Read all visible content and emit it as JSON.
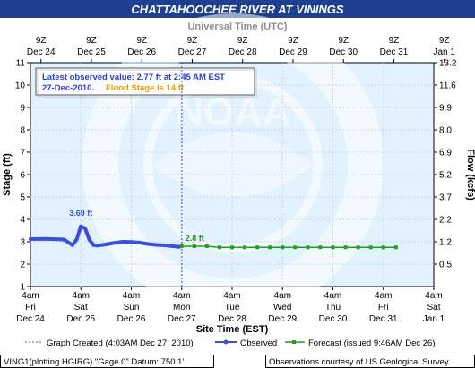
{
  "title": "CHATTAHOOCHEE RIVER AT VININGS",
  "top_axis_title": "Universal Time (UTC)",
  "bottom_axis_title": "Site Time (EST)",
  "left_axis_title": "Stage (ft)",
  "right_axis_title": "Flow (kcfs)",
  "watermark": "NOAA",
  "info": {
    "line1": "Latest observed value: 2.77 ft at 2:45 AM EST",
    "line2_date": "27-Dec-2010.",
    "line2_flood": "Flood Stage is 14 ft"
  },
  "legend": {
    "graph_created": "Graph Created (4:03AM Dec 27, 2010)",
    "observed": "Observed",
    "forecast": "Forecast (issued 9:46AM Dec 26)"
  },
  "footer": {
    "left": "VING1(plotting HGIRG) \"Gage 0\" Datum: 750.1'",
    "right": "Observations courtesy of US Geological Survey"
  },
  "colors": {
    "title_bg": "#1f3f8f",
    "plot_bg": "#e3f2ff",
    "observed": "#3a4fe0",
    "forecast": "#1fa11f",
    "flood_text": "#e8a000",
    "info_text": "#2a3fd6",
    "grid": "#c8d4e4",
    "label_observed": "#3a4fe0",
    "label_forecast": "#1f8f1f"
  },
  "chart_data": {
    "type": "line",
    "title": "CHATTAHOOCHEE RIVER AT VININGS",
    "xlabel": "Site Time (EST)",
    "ylabel": "Stage (ft)",
    "y2label": "Flow (kcfs)",
    "x_top_label": "Universal Time (UTC)",
    "ylim": [
      1,
      11
    ],
    "xlim": [
      "2010-12-24 04:00",
      "2011-01-01 04:00"
    ],
    "grid": true,
    "y_ticks": [
      1,
      2,
      3,
      4,
      5,
      6,
      7,
      8,
      9,
      10,
      11
    ],
    "y2_ticks": [
      {
        "stage": 2,
        "label": "0.5"
      },
      {
        "stage": 3,
        "label": "1.2"
      },
      {
        "stage": 4,
        "label": "2.2"
      },
      {
        "stage": 5,
        "label": "3.7"
      },
      {
        "stage": 6,
        "label": "5.2"
      },
      {
        "stage": 7,
        "label": "6.9"
      },
      {
        "stage": 8,
        "label": "8.0"
      },
      {
        "stage": 9,
        "label": "9.9"
      },
      {
        "stage": 10,
        "label": "11.6"
      },
      {
        "stage": 11,
        "label": "13.2"
      }
    ],
    "x_bottom_ticks": [
      {
        "l1": "4am",
        "l2": "Fri",
        "l3": "Dec 24"
      },
      {
        "l1": "4am",
        "l2": "Sat",
        "l3": "Dec 25"
      },
      {
        "l1": "4am",
        "l2": "Sun",
        "l3": "Dec 26"
      },
      {
        "l1": "4am",
        "l2": "Mon",
        "l3": "Dec 27"
      },
      {
        "l1": "4am",
        "l2": "Tue",
        "l3": "Dec 28"
      },
      {
        "l1": "4am",
        "l2": "Wed",
        "l3": "Dec 29"
      },
      {
        "l1": "4am",
        "l2": "Thu",
        "l3": "Dec 30"
      },
      {
        "l1": "4am",
        "l2": "Fri",
        "l3": "Dec 31"
      },
      {
        "l1": "4am",
        "l2": "Sat",
        "l3": "Jan 1"
      }
    ],
    "x_top_ticks": [
      {
        "l1": "9Z",
        "l2": "Dec 24"
      },
      {
        "l1": "9Z",
        "l2": "Dec 25"
      },
      {
        "l1": "9Z",
        "l2": "Dec 26"
      },
      {
        "l1": "9Z",
        "l2": "Dec 27"
      },
      {
        "l1": "9Z",
        "l2": "Dec 28"
      },
      {
        "l1": "9Z",
        "l2": "Dec 29"
      },
      {
        "l1": "9Z",
        "l2": "Dec 30"
      },
      {
        "l1": "9Z",
        "l2": "Dec 31"
      },
      {
        "l1": "9Z",
        "l2": "Jan 1"
      }
    ],
    "graph_created_x": "2010-12-27 04:03",
    "series": [
      {
        "name": "Observed",
        "x": [
          "2010-12-24 04:00",
          "2010-12-24 12:00",
          "2010-12-24 20:00",
          "2010-12-25 00:00",
          "2010-12-25 02:00",
          "2010-12-25 04:00",
          "2010-12-25 06:00",
          "2010-12-25 08:00",
          "2010-12-25 10:00",
          "2010-12-25 12:00",
          "2010-12-25 16:00",
          "2010-12-25 20:00",
          "2010-12-26 00:00",
          "2010-12-26 04:00",
          "2010-12-26 08:00",
          "2010-12-26 12:00",
          "2010-12-26 16:00",
          "2010-12-26 20:00",
          "2010-12-27 00:00",
          "2010-12-27 02:45"
        ],
        "values": [
          3.12,
          3.13,
          3.1,
          2.85,
          3.1,
          3.69,
          3.6,
          3.1,
          2.85,
          2.83,
          2.88,
          2.95,
          3.0,
          2.99,
          2.96,
          2.9,
          2.86,
          2.84,
          2.8,
          2.77
        ]
      },
      {
        "name": "Forecast (issued 9:46AM Dec 26)",
        "x": [
          "2010-12-27 04:00",
          "2010-12-27 10:00",
          "2010-12-27 16:00",
          "2010-12-27 22:00",
          "2010-12-28 04:00",
          "2010-12-28 10:00",
          "2010-12-28 16:00",
          "2010-12-28 22:00",
          "2010-12-29 04:00",
          "2010-12-29 10:00",
          "2010-12-29 16:00",
          "2010-12-29 22:00",
          "2010-12-30 04:00",
          "2010-12-30 10:00",
          "2010-12-30 16:00",
          "2010-12-30 22:00",
          "2010-12-31 04:00",
          "2010-12-31 10:00"
        ],
        "values": [
          2.8,
          2.8,
          2.8,
          2.75,
          2.75,
          2.75,
          2.75,
          2.75,
          2.75,
          2.75,
          2.75,
          2.75,
          2.75,
          2.75,
          2.75,
          2.75,
          2.75,
          2.75
        ]
      }
    ],
    "annotations": [
      {
        "text": "3.69 ft",
        "x": "2010-12-25 04:00",
        "y": 3.69,
        "series": "Observed"
      },
      {
        "text": "2.8 ft",
        "x": "2010-12-27 04:00",
        "y": 2.8,
        "series": "Forecast (issued 9:46AM Dec 26)"
      }
    ]
  }
}
